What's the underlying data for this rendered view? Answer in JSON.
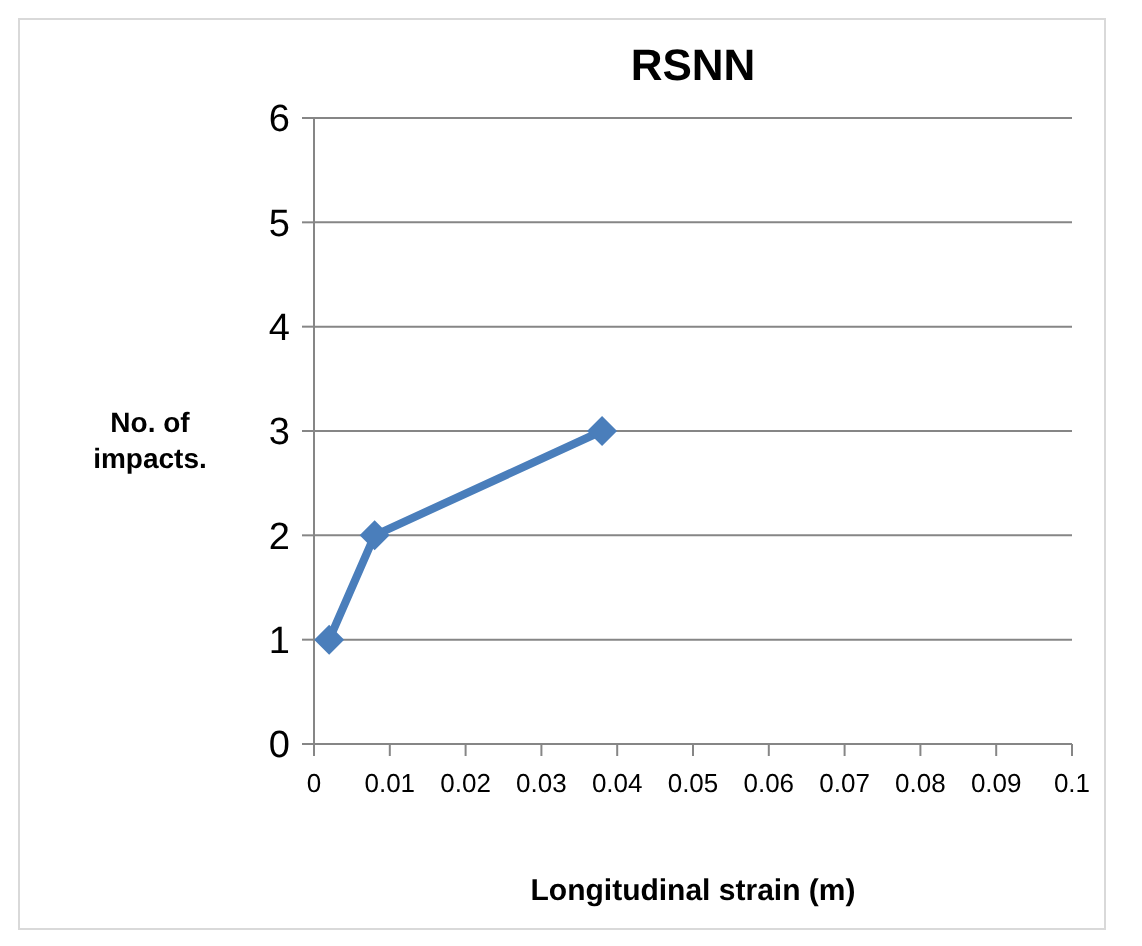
{
  "chart_data": {
    "type": "line",
    "title": "RSNN",
    "xlabel": "Longitudinal strain (m)",
    "ylabel": "No. of impacts.",
    "x": [
      0.002,
      0.008,
      0.038
    ],
    "series": [
      {
        "color": "#4a7ebb",
        "values": [
          1,
          2,
          3
        ]
      }
    ],
    "xlim": [
      0,
      0.1
    ],
    "xticks": [
      0,
      0.01,
      0.02,
      0.03,
      0.04,
      0.05,
      0.06,
      0.07,
      0.08,
      0.09,
      0.1
    ],
    "ylim": [
      0,
      6
    ],
    "yticks": [
      0,
      1,
      2,
      3,
      4,
      5,
      6
    ],
    "grid": "y",
    "marker": "diamond",
    "line_style": "solid"
  }
}
